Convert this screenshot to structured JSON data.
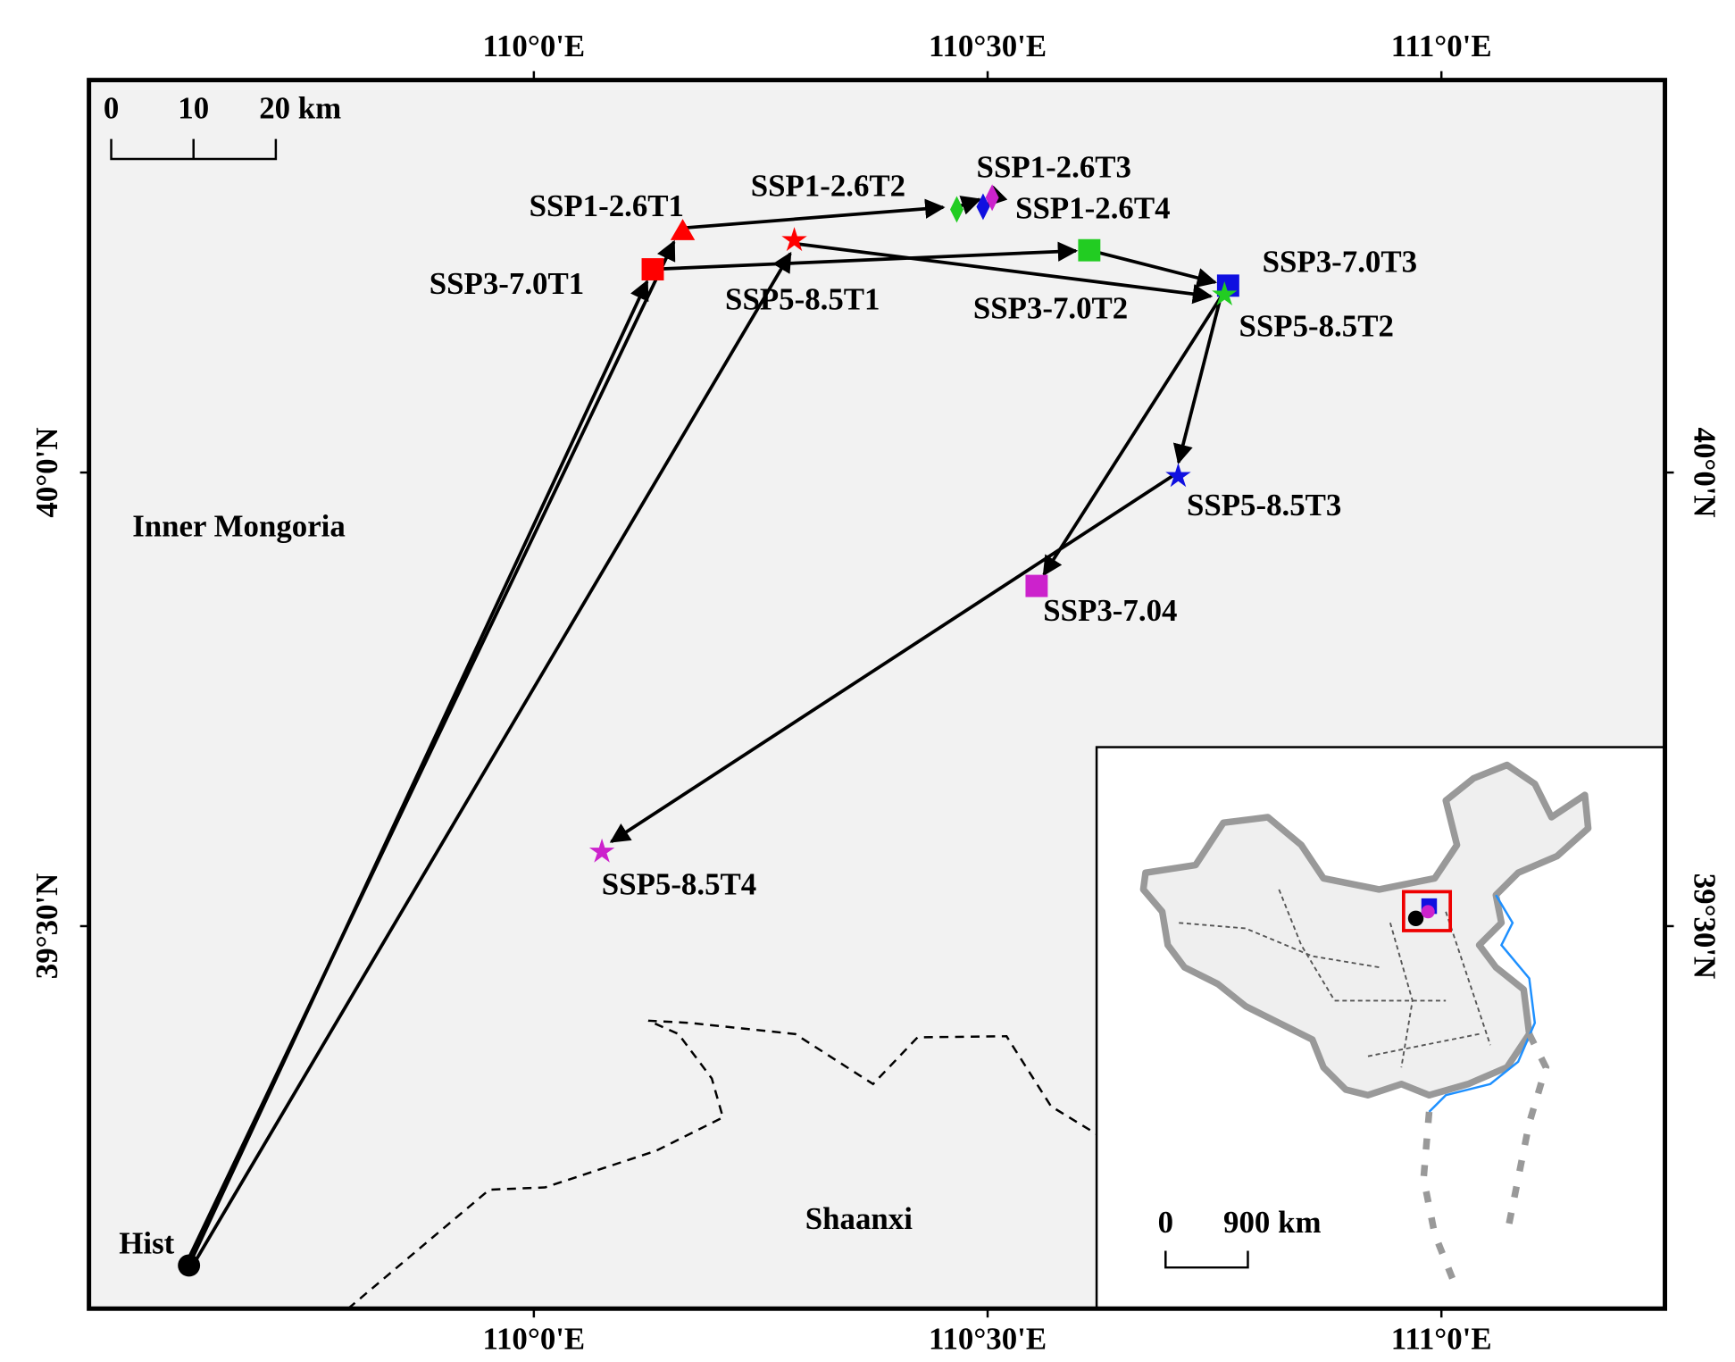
{
  "map": {
    "xlim": [
      109.5098,
      111.2463
    ],
    "ylim": [
      39.0784,
      40.4326
    ],
    "xticks": [
      {
        "value": 110,
        "label": "110°0'E"
      },
      {
        "value": 110.5,
        "label": "110°30'E"
      },
      {
        "value": 111,
        "label": "111°0'E"
      }
    ],
    "yticks": [
      {
        "value": 40,
        "label": "40°0'N"
      },
      {
        "value": 39.5,
        "label": "39°30'N"
      }
    ],
    "regions": [
      "Inner Mongoria",
      "Shaanxi"
    ],
    "scale_bar": [
      "0",
      "10",
      "20 km"
    ],
    "inset_scale_bar": [
      "0",
      "900 km"
    ],
    "origin": {
      "label": "Hist",
      "lon": 109.62,
      "lat": 39.126,
      "color": "#000000",
      "marker": "circle"
    },
    "scenarios": [
      {
        "points": [
          {
            "label": "SSP1-2.6T1",
            "lon": 110.164,
            "lat": 40.266,
            "color": "#ff0000",
            "marker": "triangle"
          },
          {
            "label": "SSP1-2.6T2",
            "lon": 110.466,
            "lat": 40.29,
            "color": "#22cc22",
            "marker": "diamond"
          },
          {
            "label": "SSP1-2.6T3",
            "lon": 110.505,
            "lat": 40.303,
            "color": "#cc22cc",
            "marker": "diamond"
          },
          {
            "label": "SSP1-2.6T4",
            "lon": 110.495,
            "lat": 40.293,
            "color": "#1010e0",
            "marker": "diamond"
          }
        ]
      },
      {
        "points": [
          {
            "label": "SSP3-7.0T1",
            "lon": 110.131,
            "lat": 40.224,
            "color": "#ff0000",
            "marker": "square"
          },
          {
            "label": "SSP3-7.0T2",
            "lon": 110.612,
            "lat": 40.245,
            "color": "#22cc22",
            "marker": "square"
          },
          {
            "label": "SSP3-7.0T3",
            "lon": 110.765,
            "lat": 40.206,
            "color": "#1010e0",
            "marker": "square"
          },
          {
            "label": "SSP3-7.04",
            "lon": 110.554,
            "lat": 39.875,
            "color": "#cc22cc",
            "marker": "square"
          }
        ]
      },
      {
        "points": [
          {
            "label": "SSP5-8.5T1",
            "lon": 110.287,
            "lat": 40.256,
            "color": "#ff0000",
            "marker": "star"
          },
          {
            "label": "SSP5-8.5T2",
            "lon": 110.761,
            "lat": 40.196,
            "color": "#22cc22",
            "marker": "star"
          },
          {
            "label": "SSP5-8.5T3",
            "lon": 110.71,
            "lat": 39.996,
            "color": "#1010e0",
            "marker": "star"
          },
          {
            "label": "SSP5-8.5T4",
            "lon": 110.075,
            "lat": 39.582,
            "color": "#cc22cc",
            "marker": "star"
          }
        ]
      }
    ]
  }
}
